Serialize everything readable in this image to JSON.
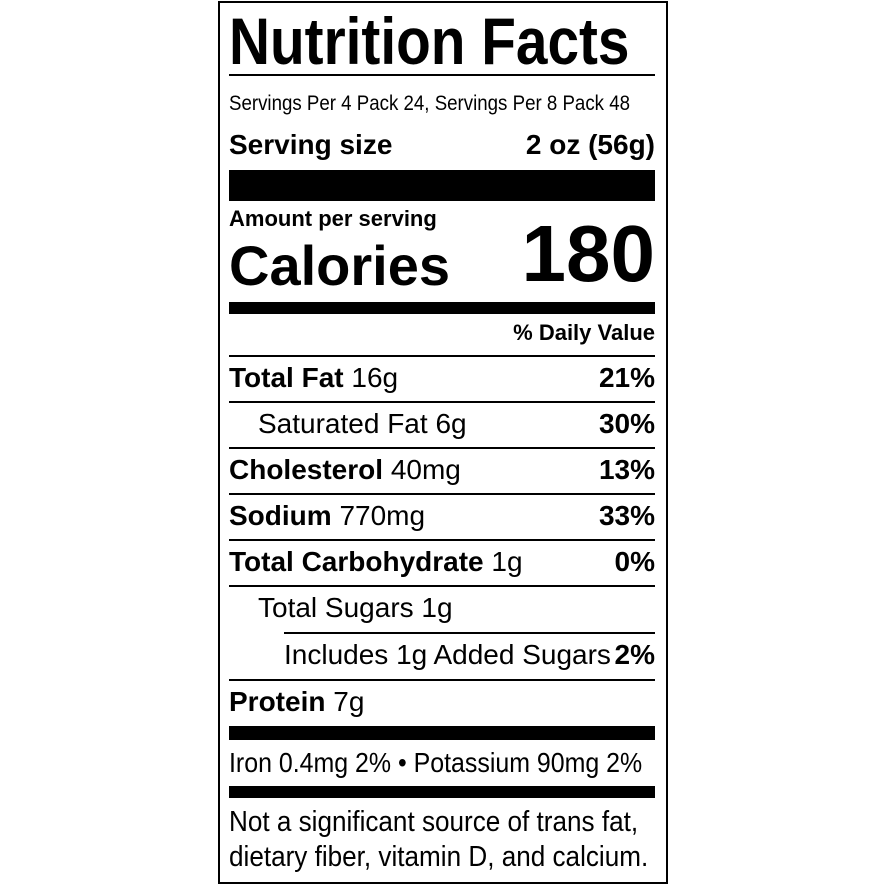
{
  "title": "Nutrition Facts",
  "servings_per": "Servings Per 4 Pack 24, Servings Per 8 Pack 48",
  "serving_size": {
    "label": "Serving size",
    "value": "2 oz (56g)"
  },
  "amount_per_serving": "Amount per serving",
  "calories": {
    "label": "Calories",
    "value": "180"
  },
  "daily_value_header": "% Daily Value",
  "nutrients": [
    {
      "name": "Total Fat",
      "amount": "16g",
      "dv": "21%"
    },
    {
      "name": "Saturated Fat",
      "amount": "6g",
      "dv": "30%"
    },
    {
      "name": "Cholesterol",
      "amount": "40mg",
      "dv": "13%"
    },
    {
      "name": "Sodium",
      "amount": "770mg",
      "dv": "33%"
    },
    {
      "name": "Total Carbohydrate",
      "amount": "1g",
      "dv": "0%"
    },
    {
      "name": "Total Sugars",
      "amount": "1g",
      "dv": ""
    },
    {
      "name": "Includes 1g Added Sugars",
      "amount": "",
      "dv": "2%"
    },
    {
      "name": "Protein",
      "amount": "7g",
      "dv": ""
    }
  ],
  "micronutrients": "Iron 0.4mg 2% • Potassium 90mg 2%",
  "footnote_line1": "Not a significant source of trans fat,",
  "footnote_line2": "dietary fiber, vitamin D, and calcium."
}
